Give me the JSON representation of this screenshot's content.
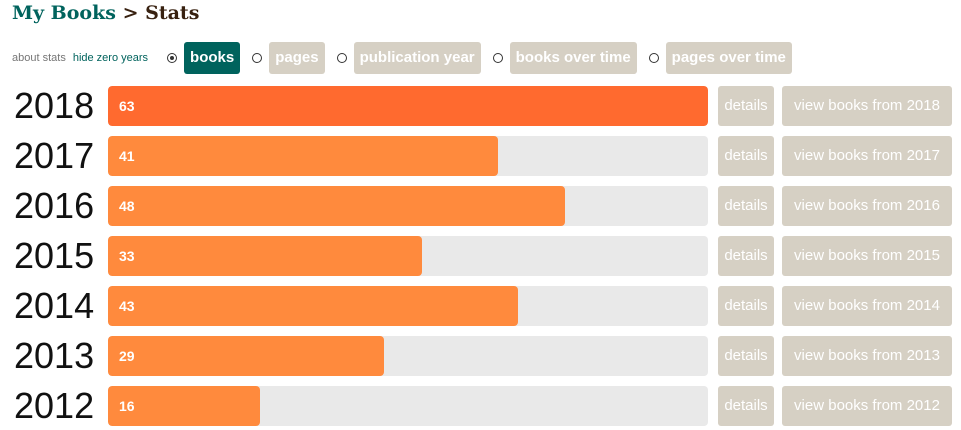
{
  "breadcrumb": {
    "root": "My Books",
    "separator": ">",
    "current": "Stats"
  },
  "toolbar": {
    "about_stats": "about stats",
    "hide_zero_years": "hide zero years",
    "tabs": [
      {
        "label": "books",
        "selected": true
      },
      {
        "label": "pages",
        "selected": false
      },
      {
        "label": "publication year",
        "selected": false
      },
      {
        "label": "books over time",
        "selected": false
      },
      {
        "label": "pages over time",
        "selected": false
      }
    ]
  },
  "colors": {
    "accent": "#00635d",
    "bar": "#ff8a3d",
    "bar_max": "#ff6a2f",
    "track": "#e9e9e9",
    "button": "#d6d0c4"
  },
  "rows": [
    {
      "year": "2018",
      "count": "63",
      "value": 63,
      "details_label": "details",
      "view_label": "view books from 2018"
    },
    {
      "year": "2017",
      "count": "41",
      "value": 41,
      "details_label": "details",
      "view_label": "view books from 2017"
    },
    {
      "year": "2016",
      "count": "48",
      "value": 48,
      "details_label": "details",
      "view_label": "view books from 2016"
    },
    {
      "year": "2015",
      "count": "33",
      "value": 33,
      "details_label": "details",
      "view_label": "view books from 2015"
    },
    {
      "year": "2014",
      "count": "43",
      "value": 43,
      "details_label": "details",
      "view_label": "view books from 2014"
    },
    {
      "year": "2013",
      "count": "29",
      "value": 29,
      "details_label": "details",
      "view_label": "view books from 2013"
    },
    {
      "year": "2012",
      "count": "16",
      "value": 16,
      "details_label": "details",
      "view_label": "view books from 2012"
    }
  ]
}
